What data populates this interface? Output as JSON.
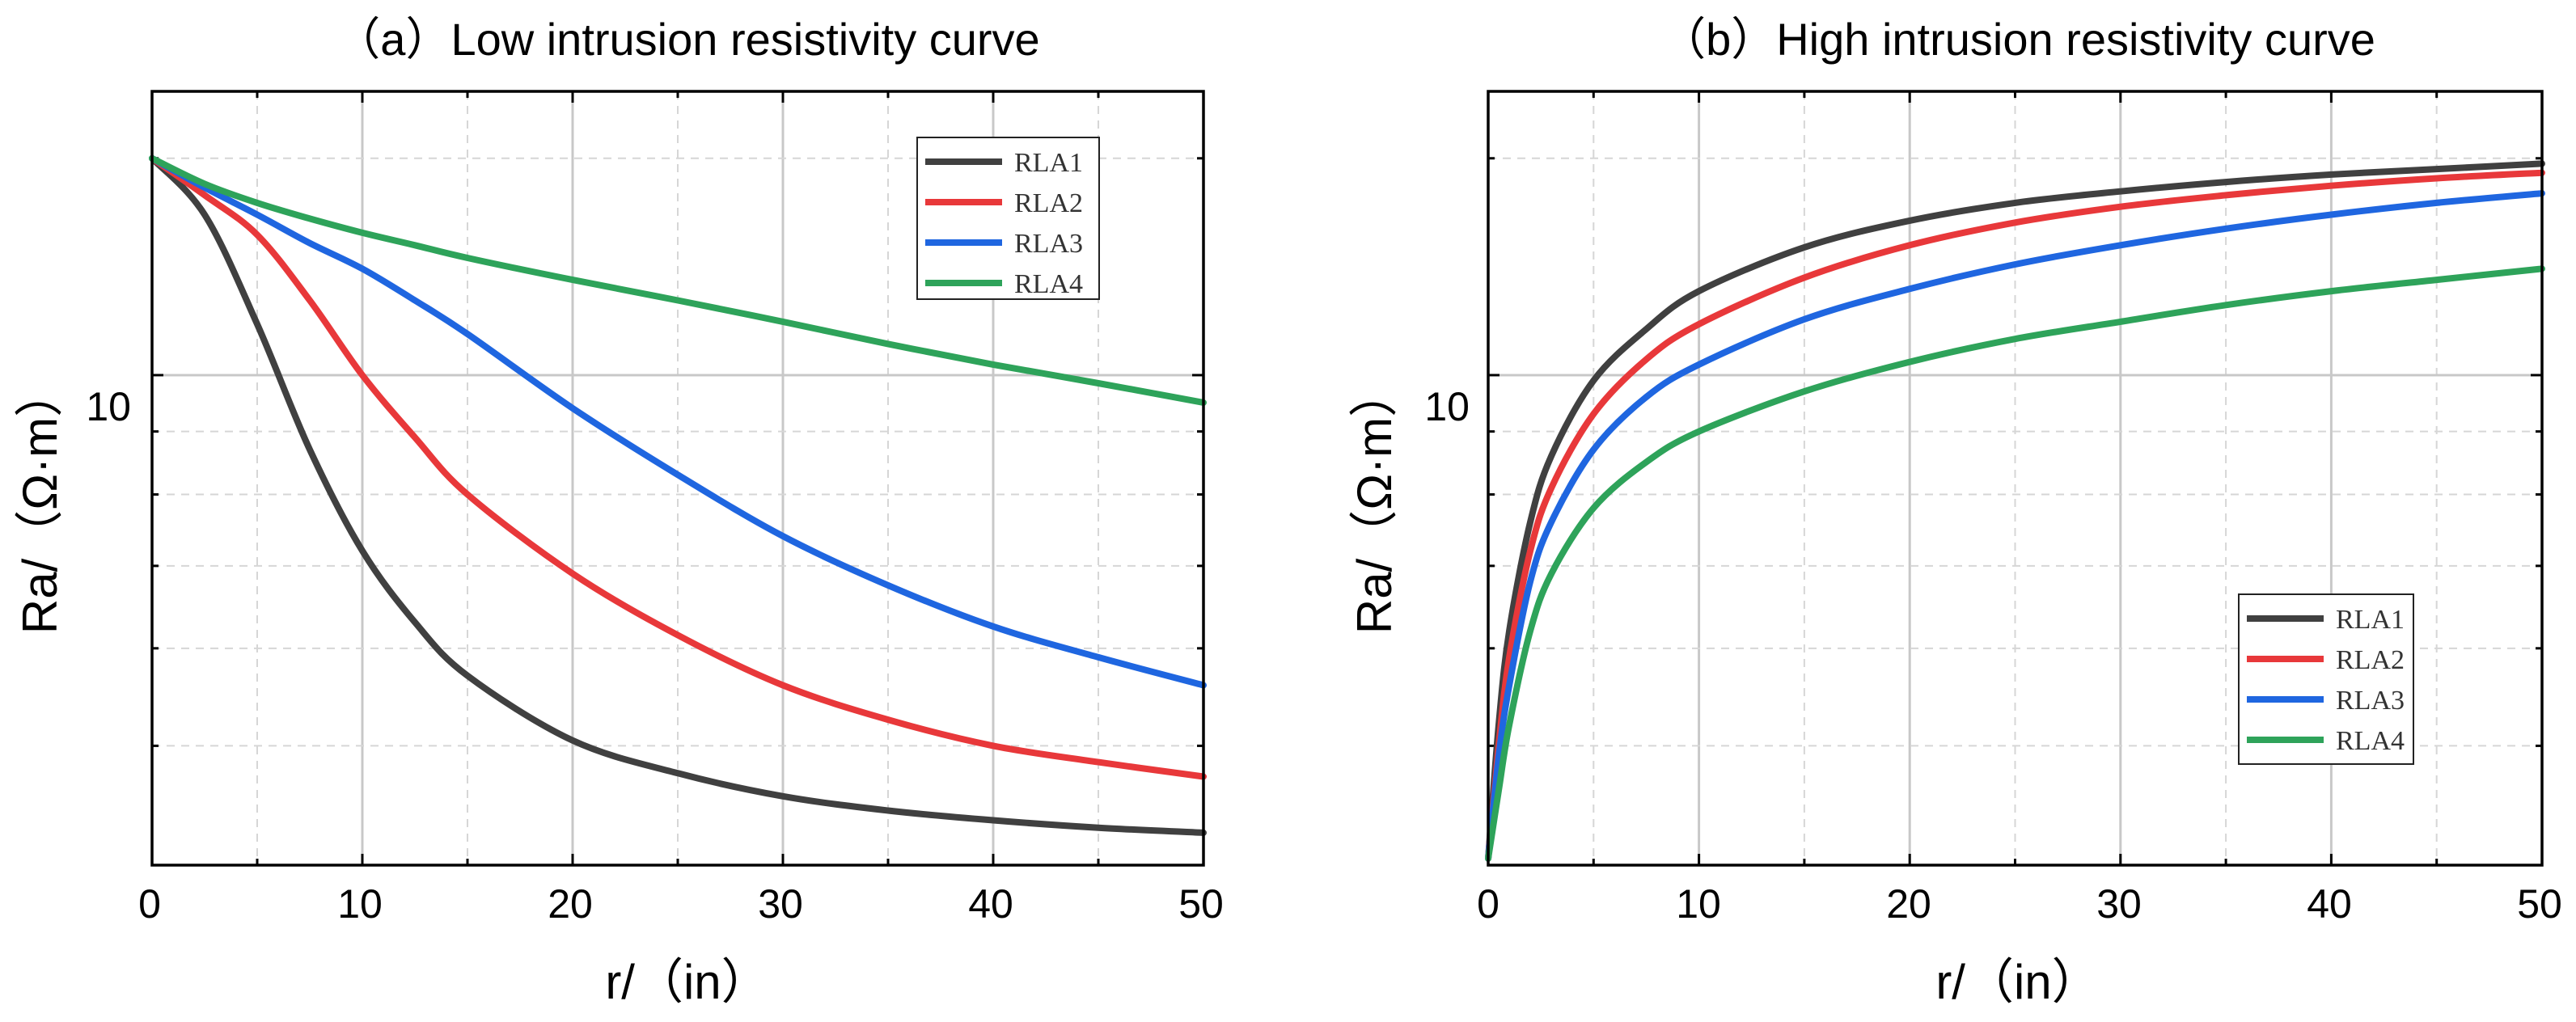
{
  "colors": {
    "RLA1": "#404040",
    "RLA2": "#e8383a",
    "RLA3": "#1f66e0",
    "RLA4": "#2ea35a",
    "grid_major": "#c8c8c8",
    "grid_minor": "#d6d6d6",
    "frame": "#000000"
  },
  "chart_data": [
    {
      "type": "line",
      "title": "（a）Low intrusion resistivity curve",
      "xlabel": "r/（in）",
      "ylabel": "Ra/（Ω·m）",
      "xlim": [
        0,
        50
      ],
      "ylim": [
        4,
        17
      ],
      "yscale": "log",
      "xticks": [
        "0",
        "10",
        "20",
        "30",
        "40",
        "50"
      ],
      "yticks": [
        {
          "value": 10,
          "label": "10"
        }
      ],
      "grid": true,
      "legend_position": "top-right",
      "x": [
        0,
        2.5,
        5,
        7.5,
        10,
        12.5,
        15,
        20,
        25,
        30,
        35,
        40,
        45,
        50
      ],
      "series": [
        {
          "name": "RLA1",
          "values": [
            15.0,
            13.5,
            11.0,
            8.7,
            7.2,
            6.3,
            5.7,
            5.05,
            4.75,
            4.55,
            4.43,
            4.35,
            4.29,
            4.25
          ]
        },
        {
          "name": "RLA2",
          "values": [
            15.0,
            14.0,
            13.0,
            11.5,
            10.0,
            8.9,
            8.0,
            6.9,
            6.15,
            5.6,
            5.25,
            5.0,
            4.85,
            4.72
          ]
        },
        {
          "name": "RLA3",
          "values": [
            15.0,
            14.2,
            13.5,
            12.8,
            12.2,
            11.5,
            10.8,
            9.4,
            8.3,
            7.4,
            6.75,
            6.25,
            5.9,
            5.6
          ]
        },
        {
          "name": "RLA4",
          "values": [
            15.0,
            14.3,
            13.8,
            13.4,
            13.05,
            12.75,
            12.45,
            11.95,
            11.5,
            11.05,
            10.6,
            10.2,
            9.85,
            9.5
          ]
        }
      ]
    },
    {
      "type": "line",
      "title": "（b）High intrusion resistivity curve",
      "xlabel": "r/（in）",
      "ylabel": "Ra/（Ω·m）",
      "xlim": [
        0,
        50
      ],
      "ylim": [
        4,
        17
      ],
      "yscale": "log",
      "xticks": [
        "0",
        "10",
        "20",
        "30",
        "40",
        "50"
      ],
      "yticks": [
        {
          "value": 10,
          "label": "10"
        }
      ],
      "grid": true,
      "legend_position": "bottom-right",
      "x": [
        0,
        0.5,
        1,
        2,
        3,
        5,
        7.5,
        10,
        15,
        20,
        25,
        30,
        35,
        40,
        45,
        50
      ],
      "series": [
        {
          "name": "RLA1",
          "values": [
            4.05,
            5.2,
            6.2,
            7.6,
            8.6,
            9.9,
            10.9,
            11.7,
            12.7,
            13.35,
            13.8,
            14.1,
            14.35,
            14.55,
            14.7,
            14.85
          ]
        },
        {
          "name": "RLA2",
          "values": [
            4.05,
            5.0,
            5.9,
            7.2,
            8.1,
            9.3,
            10.3,
            11.0,
            12.0,
            12.75,
            13.3,
            13.7,
            14.0,
            14.25,
            14.45,
            14.6
          ]
        },
        {
          "name": "RLA3",
          "values": [
            4.05,
            4.9,
            5.6,
            6.8,
            7.6,
            8.7,
            9.6,
            10.2,
            11.1,
            11.75,
            12.3,
            12.75,
            13.15,
            13.5,
            13.8,
            14.05
          ]
        },
        {
          "name": "RLA4",
          "values": [
            4.05,
            4.6,
            5.2,
            6.2,
            6.9,
            7.8,
            8.5,
            9.0,
            9.7,
            10.25,
            10.7,
            11.05,
            11.4,
            11.7,
            11.95,
            12.2
          ]
        }
      ]
    }
  ]
}
